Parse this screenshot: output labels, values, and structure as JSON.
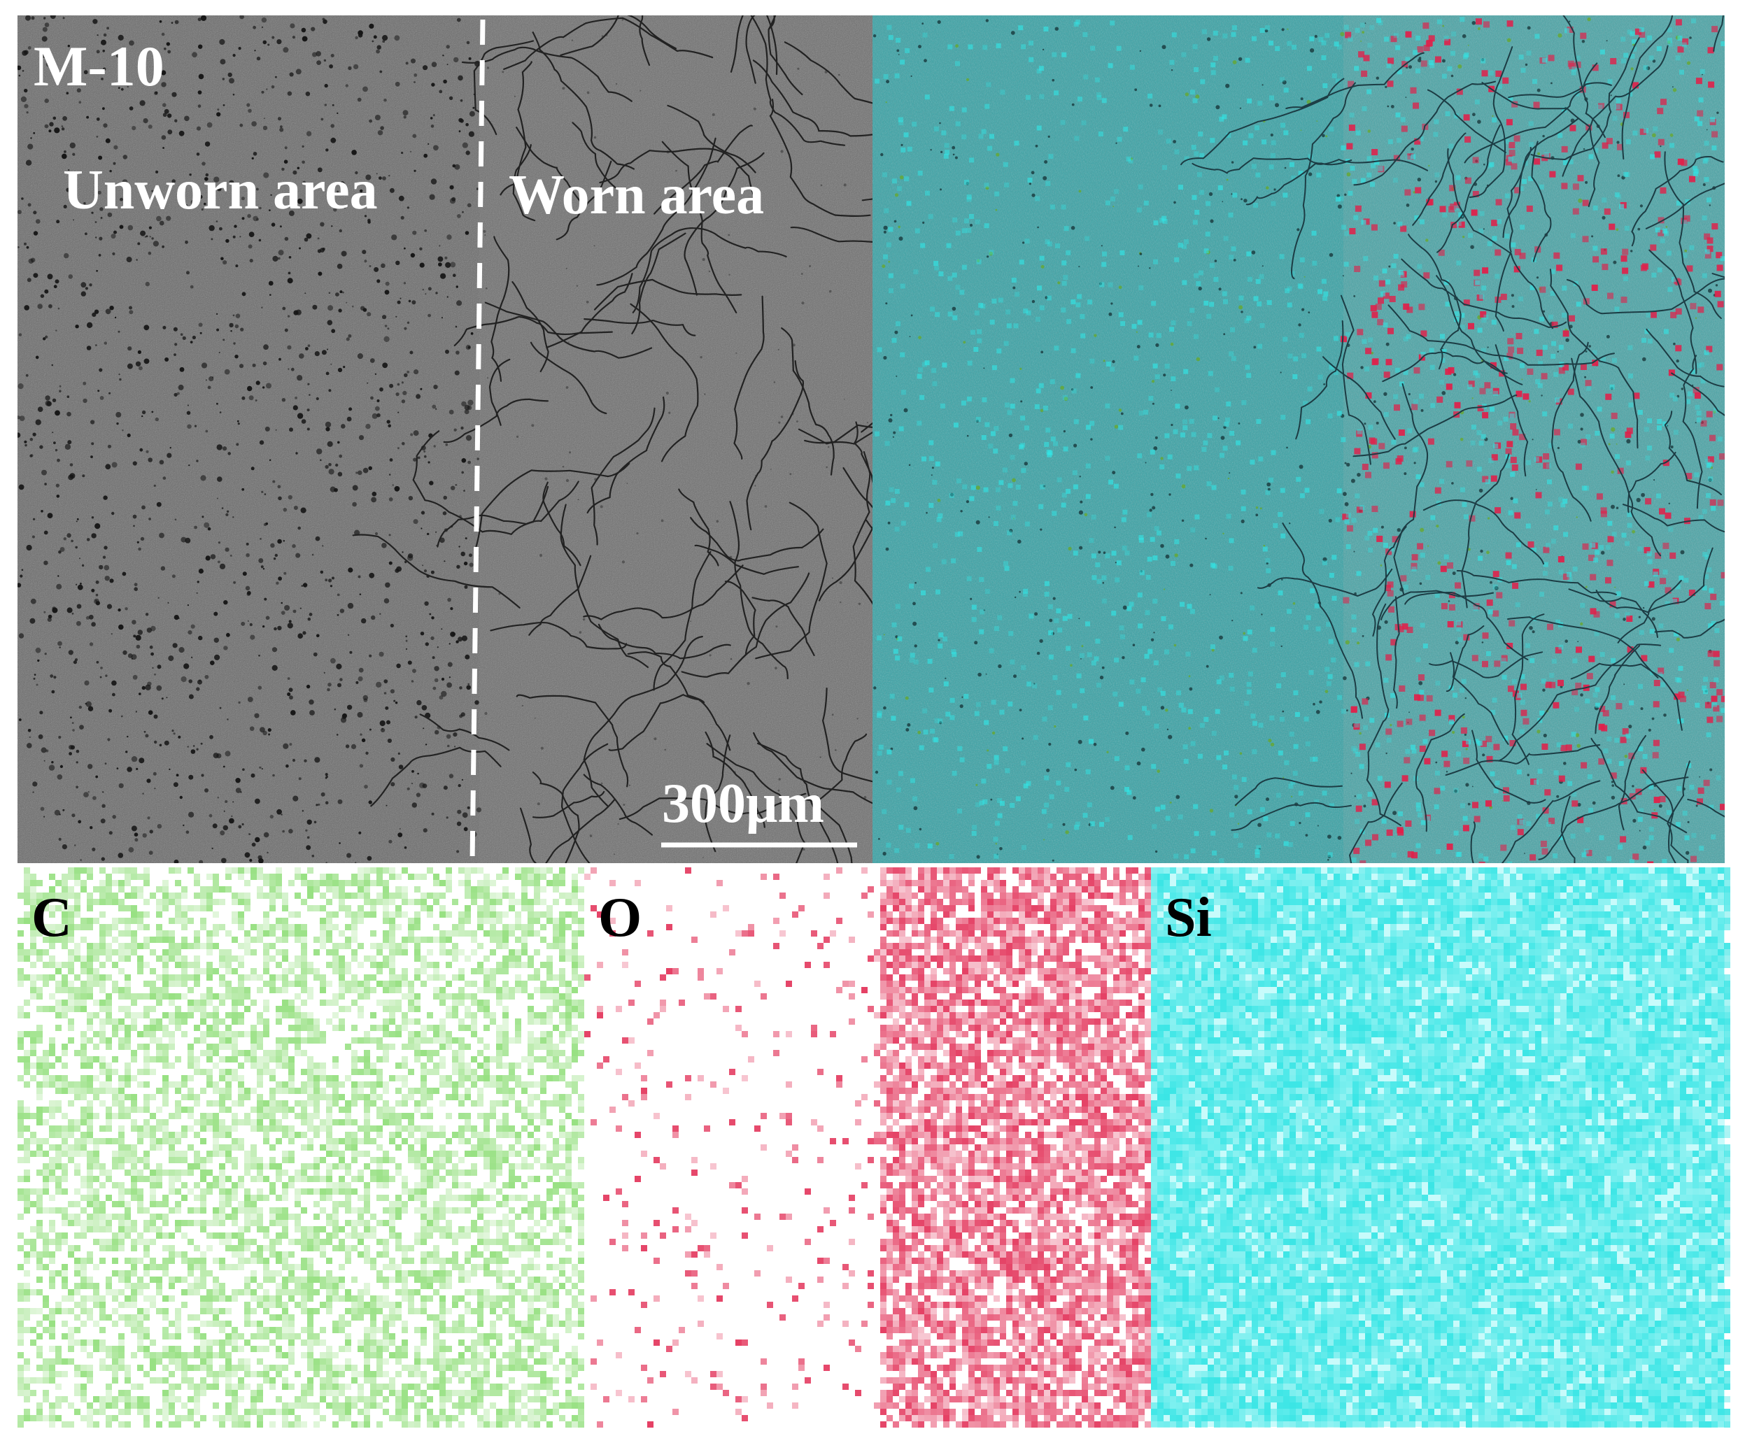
{
  "figure": {
    "sample_label": "M-10",
    "unworn_label": "Unworn area",
    "worn_label": "Worn area",
    "scale_bar_label": "300μm",
    "maps": [
      {
        "element": "C",
        "color": "#44c81e"
      },
      {
        "element": "O",
        "color": "#e0204a"
      },
      {
        "element": "Si",
        "color": "#18e0e0"
      }
    ],
    "colors": {
      "sem_unworn": "#6a6a6a",
      "sem_worn": "#6e6e6e",
      "overlay_base": "#3aa3a6",
      "label_light": "#ffffff",
      "label_dark": "#000000"
    }
  }
}
